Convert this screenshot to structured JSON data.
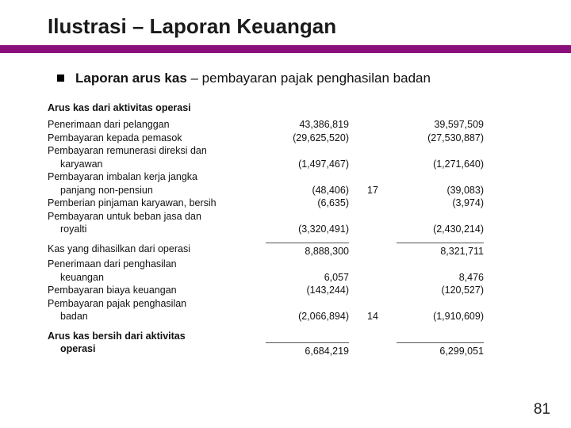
{
  "title": "Ilustrasi – Laporan Keuangan",
  "bullet": {
    "bold": "Laporan arus kas",
    "rest": " – pembayaran pajak penghasilan badan"
  },
  "section_header": "Arus kas dari aktivitas operasi",
  "rows": [
    {
      "desc": "Penerimaan dari pelanggan",
      "a": "43,386,819",
      "n": "",
      "b": "39,597,509"
    },
    {
      "desc": "Pembayaran kepada pemasok",
      "a": "(29,625,520)",
      "n": "",
      "b": "(27,530,887)"
    },
    {
      "desc": "Pembayaran remunerasi direksi dan",
      "a": "",
      "n": "",
      "b": ""
    },
    {
      "desc": "karyawan",
      "indent": true,
      "a": "(1,497,467)",
      "n": "",
      "b": "(1,271,640)"
    },
    {
      "desc": "Pembayaran imbalan kerja jangka",
      "a": "",
      "n": "",
      "b": ""
    },
    {
      "desc": "panjang non-pensiun",
      "indent": true,
      "a": "(48,406)",
      "n": "17",
      "b": "(39,083)"
    },
    {
      "desc": "Pemberian pinjaman karyawan, bersih",
      "a": "(6,635)",
      "n": "",
      "b": "(3,974)"
    },
    {
      "desc": "Pembayaran untuk beban jasa dan",
      "a": "",
      "n": "",
      "b": ""
    },
    {
      "desc": "royalti",
      "indent": true,
      "a": "(3,320,491)",
      "n": "",
      "b": "(2,430,214)"
    }
  ],
  "subtotal1": [
    {
      "desc": "Kas yang dihasilkan dari operasi",
      "a": "8,888,300",
      "n": "",
      "b": "8,321,711",
      "rule": true
    },
    {
      "desc": "Penerimaan dari penghasilan",
      "a": "",
      "n": "",
      "b": ""
    },
    {
      "desc": "keuangan",
      "indent": true,
      "a": "6,057",
      "n": "",
      "b": "8,476"
    },
    {
      "desc": "Pembayaran biaya keuangan",
      "a": "(143,244)",
      "n": "",
      "b": "(120,527)"
    },
    {
      "desc": "Pembayaran pajak penghasilan",
      "a": "",
      "n": "",
      "b": ""
    },
    {
      "desc": "badan",
      "indent": true,
      "a": "(2,066,894)",
      "n": "14",
      "b": "(1,910,609)"
    }
  ],
  "total_header": "Arus kas bersih dari aktivitas",
  "total_header2": "operasi",
  "total": {
    "a": "6,684,219",
    "n": "",
    "b": "6,299,051"
  },
  "page_number": "81"
}
